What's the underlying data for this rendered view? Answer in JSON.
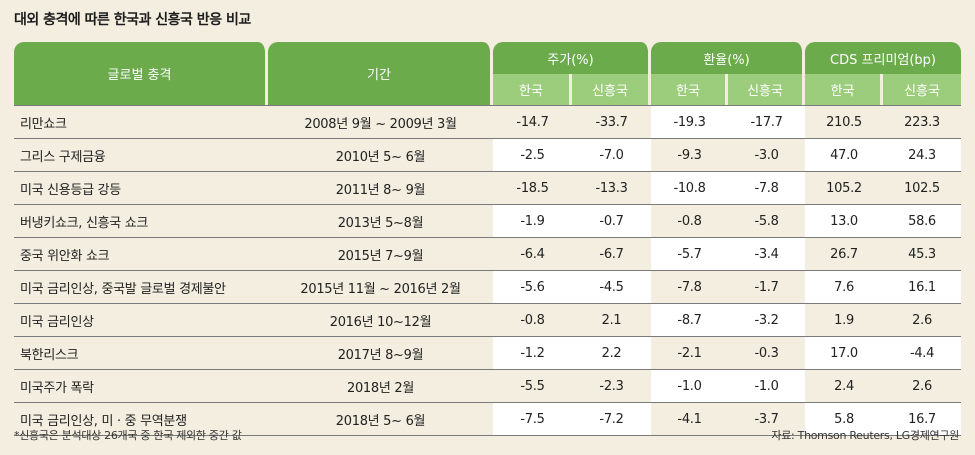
{
  "title": "대외 충격에 따른 한국과 신흥국 반응 비교",
  "headers": {
    "event": "글로벌 충격",
    "period": "기간",
    "stock": "주가(%)",
    "fx": "환율(%)",
    "cds": "CDS 프리미엄(bp)",
    "korea": "한국",
    "emerging": "신흥국"
  },
  "rows": [
    {
      "event": "리만쇼크",
      "period": "2008년 9월 ~ 2009년 3월",
      "values": [
        "-14.7",
        "-33.7",
        "-19.3",
        "-17.7",
        "210.5",
        "223.3"
      ]
    },
    {
      "event": "그리스 구제금융",
      "period": "2010년 5~ 6월",
      "values": [
        "-2.5",
        "-7.0",
        "-9.3",
        "-3.0",
        "47.0",
        "24.3"
      ]
    },
    {
      "event": "미국 신용등급 강등",
      "period": "2011년 8~ 9월",
      "values": [
        "-18.5",
        "-13.3",
        "-10.8",
        "-7.8",
        "105.2",
        "102.5"
      ]
    },
    {
      "event": "버냉키쇼크, 신흥국 쇼크",
      "period": "2013년 5~8월",
      "values": [
        "-1.9",
        "-0.7",
        "-0.8",
        "-5.8",
        "13.0",
        "58.6"
      ]
    },
    {
      "event": "중국 위안화 쇼크",
      "period": "2015년 7~9월",
      "values": [
        "-6.4",
        "-6.7",
        "-5.7",
        "-3.4",
        "26.7",
        "45.3"
      ]
    },
    {
      "event": "미국 금리인상, 중국발 글로벌 경제불안",
      "period": "2015년 11월 ~ 2016년 2월",
      "values": [
        "-5.6",
        "-4.5",
        "-7.8",
        "-1.7",
        "7.6",
        "16.1"
      ]
    },
    {
      "event": "미국 금리인상",
      "period": "2016년 10~12월",
      "values": [
        "-0.8",
        "2.1",
        "-8.7",
        "-3.2",
        "1.9",
        "2.6"
      ]
    },
    {
      "event": "북한리스크",
      "period": "2017년 8~9월",
      "values": [
        "-1.2",
        "2.2",
        "-2.1",
        "-0.3",
        "17.0",
        "-4.4"
      ]
    },
    {
      "event": "미국주가 폭락",
      "period": "2018년 2월",
      "values": [
        "-5.5",
        "-2.3",
        "-1.0",
        "-1.0",
        "2.4",
        "2.6"
      ]
    },
    {
      "event": "미국 금리인상, 미 · 중 무역분쟁",
      "period": "2018년 5~ 6월",
      "values": [
        "-7.5",
        "-7.2",
        "-4.1",
        "-3.7",
        "5.8",
        "16.7"
      ]
    }
  ],
  "highlight_white": [
    [
      false,
      false,
      true,
      true,
      false,
      false
    ],
    [
      true,
      true,
      false,
      false,
      true,
      true
    ],
    [
      false,
      false,
      true,
      true,
      false,
      false
    ],
    [
      true,
      true,
      false,
      false,
      true,
      true
    ],
    [
      false,
      false,
      true,
      true,
      false,
      false
    ],
    [
      true,
      true,
      false,
      false,
      true,
      true
    ],
    [
      false,
      false,
      true,
      true,
      false,
      false
    ],
    [
      true,
      true,
      false,
      false,
      true,
      true
    ],
    [
      false,
      false,
      true,
      true,
      false,
      false
    ],
    [
      true,
      true,
      false,
      false,
      true,
      true
    ]
  ],
  "footnote": "*신흥국은 분석대상 26개국 중 한국 제외한 중간 값",
  "source": "자료: Thomson Reuters, LG경제연구원",
  "colors": {
    "header_dark": "#6bab4c",
    "header_light": "#9ccd7c",
    "background": "#f3eedf",
    "highlight": "#ffffff"
  }
}
